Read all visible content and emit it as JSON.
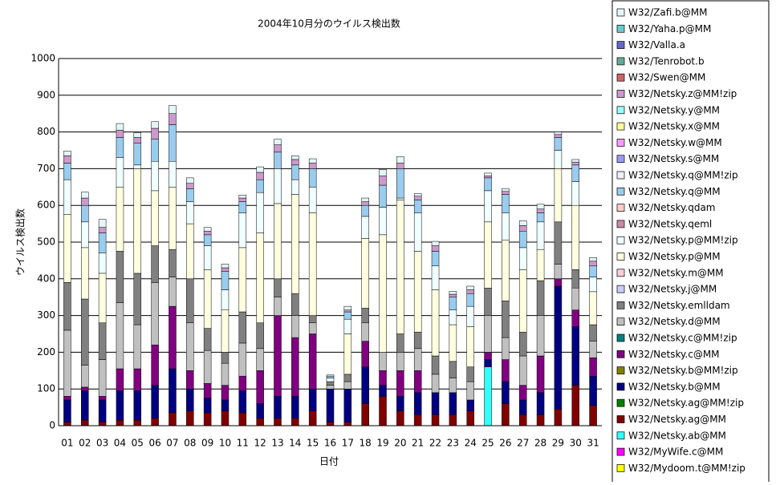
{
  "chart_data": {
    "type": "stacked_bar",
    "title": "2004年10月分のウイルス検出数",
    "x_label": "日付",
    "y_label": "ウイルス検出数",
    "categories": [
      "01",
      "02",
      "03",
      "04",
      "05",
      "06",
      "07",
      "08",
      "09",
      "10",
      "11",
      "12",
      "13",
      "14",
      "15",
      "16",
      "17",
      "18",
      "19",
      "20",
      "21",
      "22",
      "23",
      "24",
      "25",
      "26",
      "27",
      "28",
      "29",
      "30",
      "31"
    ],
    "ylim": [
      0,
      1000
    ],
    "yticks": [
      0,
      100,
      200,
      300,
      400,
      500,
      600,
      700,
      800,
      900,
      1000
    ],
    "grid": true,
    "series": [
      {
        "name": "W32/Zafi.b@MM",
        "color": "#e4f6f6",
        "values": [
          13,
          16,
          22,
          18,
          13,
          18,
          22,
          15,
          10,
          10,
          8,
          15,
          15,
          10,
          12,
          3,
          10,
          10,
          18,
          18,
          7,
          12,
          8,
          10,
          8,
          8,
          13,
          13,
          7,
          7,
          10
        ]
      },
      {
        "name": "W32/Yaha.p@MM",
        "color": "#66cccc",
        "values": [
          0,
          0,
          0,
          0,
          0,
          0,
          0,
          0,
          0,
          0,
          0,
          0,
          0,
          0,
          0,
          0,
          0,
          0,
          0,
          0,
          0,
          0,
          0,
          0,
          0,
          0,
          0,
          0,
          0,
          0,
          0
        ]
      },
      {
        "name": "W32/Valla.a",
        "color": "#6666cc",
        "values": [
          0,
          0,
          0,
          0,
          0,
          0,
          0,
          0,
          0,
          0,
          0,
          0,
          0,
          0,
          0,
          0,
          0,
          0,
          0,
          0,
          0,
          0,
          0,
          0,
          0,
          0,
          0,
          0,
          0,
          0,
          0
        ]
      },
      {
        "name": "W32/Tenrobot.b",
        "color": "#66aa99",
        "values": [
          0,
          0,
          0,
          0,
          0,
          0,
          0,
          0,
          0,
          0,
          0,
          0,
          0,
          0,
          0,
          0,
          0,
          0,
          0,
          0,
          0,
          0,
          0,
          0,
          0,
          0,
          0,
          0,
          0,
          0,
          0
        ]
      },
      {
        "name": "W32/Swen@MM",
        "color": "#cc6666",
        "values": [
          0,
          0,
          0,
          0,
          0,
          0,
          0,
          0,
          0,
          0,
          0,
          0,
          0,
          0,
          0,
          0,
          0,
          0,
          0,
          0,
          0,
          0,
          0,
          0,
          0,
          0,
          0,
          0,
          0,
          0,
          0
        ]
      },
      {
        "name": "W32/Netsky.z@MM!zip",
        "color": "#cc99cc",
        "values": [
          20,
          20,
          15,
          20,
          15,
          30,
          30,
          15,
          10,
          10,
          10,
          20,
          20,
          15,
          15,
          0,
          5,
          10,
          25,
          15,
          10,
          15,
          8,
          10,
          5,
          8,
          15,
          10,
          8,
          8,
          13
        ]
      },
      {
        "name": "W32/Netsky.y@MM",
        "color": "#99ffff",
        "values": [
          0,
          0,
          0,
          0,
          0,
          0,
          0,
          0,
          0,
          0,
          0,
          0,
          0,
          0,
          0,
          0,
          0,
          0,
          0,
          0,
          0,
          0,
          0,
          0,
          0,
          0,
          0,
          0,
          0,
          0,
          0
        ]
      },
      {
        "name": "W32/Netsky.x@MM",
        "color": "#ffff99",
        "values": [
          0,
          0,
          0,
          0,
          0,
          0,
          0,
          0,
          0,
          0,
          0,
          0,
          0,
          0,
          0,
          0,
          0,
          0,
          0,
          0,
          0,
          0,
          0,
          0,
          0,
          0,
          0,
          0,
          0,
          0,
          0
        ]
      },
      {
        "name": "W32/Netsky.w@MM",
        "color": "#ff99ff",
        "values": [
          0,
          0,
          0,
          0,
          0,
          0,
          0,
          0,
          0,
          0,
          0,
          0,
          0,
          0,
          0,
          0,
          0,
          0,
          0,
          0,
          0,
          0,
          0,
          0,
          0,
          0,
          0,
          0,
          0,
          0,
          0
        ]
      },
      {
        "name": "W32/Netsky.s@MM",
        "color": "#9999ff",
        "values": [
          0,
          0,
          0,
          0,
          0,
          0,
          0,
          0,
          0,
          0,
          0,
          0,
          0,
          0,
          0,
          0,
          0,
          0,
          0,
          0,
          0,
          0,
          0,
          0,
          0,
          0,
          0,
          0,
          0,
          0,
          0
        ]
      },
      {
        "name": "W32/Netsky.q@MM!zip",
        "color": "#eeeeff",
        "values": [
          0,
          0,
          0,
          0,
          0,
          0,
          0,
          0,
          0,
          0,
          0,
          0,
          0,
          0,
          0,
          0,
          0,
          0,
          0,
          0,
          0,
          0,
          0,
          0,
          0,
          0,
          0,
          0,
          0,
          0,
          0
        ]
      },
      {
        "name": "W32/Netsky.q@MM",
        "color": "#99ccee",
        "values": [
          45,
          45,
          55,
          55,
          60,
          60,
          100,
          35,
          30,
          50,
          30,
          35,
          45,
          40,
          50,
          5,
          20,
          30,
          60,
          80,
          35,
          40,
          35,
          35,
          35,
          50,
          45,
          25,
          35,
          45,
          30
        ]
      },
      {
        "name": "W32/Netsky.qdam",
        "color": "#ffcccc",
        "values": [
          0,
          0,
          0,
          0,
          0,
          0,
          0,
          0,
          0,
          0,
          0,
          0,
          0,
          0,
          0,
          0,
          0,
          0,
          0,
          0,
          0,
          0,
          0,
          0,
          0,
          0,
          0,
          0,
          0,
          0,
          0
        ]
      },
      {
        "name": "W32/Netsky.qeml",
        "color": "#cc88aa",
        "values": [
          0,
          0,
          0,
          0,
          0,
          0,
          0,
          0,
          0,
          0,
          0,
          0,
          0,
          0,
          0,
          0,
          0,
          0,
          0,
          0,
          0,
          0,
          0,
          0,
          0,
          0,
          0,
          0,
          0,
          0,
          0
        ]
      },
      {
        "name": "W32/Netsky.p@MM!zip",
        "color": "#f0ffff",
        "values": [
          95,
          70,
          55,
          80,
          10,
          80,
          70,
          60,
          65,
          55,
          95,
          110,
          95,
          40,
          70,
          10,
          40,
          60,
          75,
          5,
          105,
          65,
          40,
          55,
          85,
          75,
          60,
          75,
          50,
          65,
          40
        ]
      },
      {
        "name": "W32/Netsky.p@MM",
        "color": "#ffffe0",
        "values": [
          185,
          140,
          135,
          175,
          285,
          150,
          170,
          150,
          160,
          115,
          175,
          245,
          205,
          270,
          280,
          0,
          110,
          190,
          320,
          365,
          220,
          180,
          100,
          110,
          180,
          165,
          170,
          85,
          145,
          175,
          90
        ]
      },
      {
        "name": "W32/Netsky.m@MM",
        "color": "#ffccdd",
        "values": [
          0,
          0,
          0,
          0,
          0,
          0,
          0,
          0,
          0,
          0,
          0,
          0,
          0,
          0,
          0,
          0,
          0,
          0,
          0,
          0,
          0,
          0,
          0,
          0,
          0,
          0,
          0,
          0,
          0,
          0,
          0
        ]
      },
      {
        "name": "W32/Netsky.j@MM",
        "color": "#ccccff",
        "values": [
          0,
          0,
          0,
          0,
          0,
          0,
          0,
          0,
          0,
          0,
          0,
          0,
          0,
          0,
          0,
          0,
          0,
          0,
          0,
          0,
          0,
          0,
          0,
          0,
          0,
          0,
          0,
          0,
          0,
          0,
          0
        ]
      },
      {
        "name": "W32/Netsky.emlldam",
        "color": "#808080",
        "values": [
          130,
          180,
          100,
          140,
          140,
          100,
          75,
          120,
          60,
          30,
          85,
          70,
          50,
          60,
          20,
          10,
          20,
          40,
          0,
          50,
          45,
          50,
          45,
          40,
          75,
          100,
          65,
          95,
          115,
          50,
          45
        ]
      },
      {
        "name": "W32/Netsky.d@MM",
        "color": "#c0c0c0",
        "values": [
          180,
          60,
          100,
          180,
          120,
          170,
          80,
          130,
          90,
          60,
          90,
          60,
          50,
          60,
          30,
          10,
          20,
          50,
          50,
          50,
          60,
          50,
          40,
          50,
          100,
          60,
          80,
          110,
          40,
          60,
          45
        ]
      },
      {
        "name": "W32/Netsky.c@MM!zip",
        "color": "#008080",
        "values": [
          0,
          0,
          0,
          0,
          0,
          0,
          0,
          0,
          0,
          0,
          0,
          0,
          0,
          0,
          0,
          0,
          0,
          0,
          0,
          0,
          0,
          0,
          0,
          0,
          0,
          0,
          0,
          0,
          0,
          0,
          0
        ]
      },
      {
        "name": "W32/Netsky.c@MM",
        "color": "#800080",
        "values": [
          10,
          10,
          10,
          60,
          60,
          110,
          170,
          50,
          40,
          40,
          40,
          90,
          220,
          160,
          150,
          0,
          0,
          70,
          40,
          70,
          60,
          0,
          0,
          0,
          20,
          60,
          40,
          100,
          20,
          45,
          50
        ]
      },
      {
        "name": "W32/Netsky.b@MM!zip",
        "color": "#808000",
        "values": [
          0,
          0,
          0,
          0,
          0,
          0,
          0,
          0,
          0,
          0,
          0,
          0,
          0,
          0,
          0,
          0,
          0,
          0,
          0,
          0,
          0,
          0,
          0,
          0,
          0,
          0,
          0,
          0,
          0,
          0,
          0
        ]
      },
      {
        "name": "W32/Netsky.b@MM",
        "color": "#000080",
        "values": [
          60,
          80,
          60,
          80,
          80,
          90,
          120,
          60,
          40,
          30,
          60,
          40,
          60,
          60,
          60,
          90,
          90,
          100,
          30,
          40,
          60,
          60,
          60,
          30,
          20,
          60,
          40,
          60,
          335,
          160,
          80
        ]
      },
      {
        "name": "W32/Netsky.ag@MM!zip",
        "color": "#008000",
        "values": [
          0,
          0,
          0,
          0,
          0,
          0,
          0,
          0,
          0,
          0,
          0,
          0,
          0,
          0,
          0,
          0,
          0,
          0,
          0,
          0,
          0,
          0,
          0,
          0,
          0,
          0,
          0,
          0,
          0,
          0,
          0
        ]
      },
      {
        "name": "W32/Netsky.ag@MM",
        "color": "#800000",
        "values": [
          10,
          15,
          10,
          15,
          15,
          20,
          35,
          40,
          35,
          40,
          35,
          20,
          20,
          20,
          40,
          10,
          10,
          60,
          80,
          40,
          30,
          30,
          30,
          40,
          0,
          60,
          30,
          30,
          45,
          110,
          55
        ]
      },
      {
        "name": "W32/Netsky.ab@MM",
        "color": "#33ffff",
        "values": [
          0,
          0,
          0,
          0,
          0,
          0,
          0,
          0,
          0,
          0,
          0,
          0,
          0,
          0,
          0,
          0,
          0,
          0,
          0,
          0,
          0,
          0,
          0,
          0,
          160,
          0,
          0,
          0,
          0,
          0,
          0
        ]
      },
      {
        "name": "W32/MyWife.c@MM",
        "color": "#ff00ff",
        "values": [
          0,
          0,
          0,
          0,
          0,
          0,
          0,
          0,
          0,
          0,
          0,
          0,
          0,
          0,
          0,
          0,
          0,
          0,
          0,
          0,
          0,
          0,
          0,
          0,
          0,
          0,
          0,
          0,
          0,
          0,
          0
        ]
      },
      {
        "name": "W32/Mydoom.t@MM!zip",
        "color": "#ffff00",
        "values": [
          0,
          0,
          0,
          0,
          0,
          0,
          0,
          0,
          0,
          0,
          0,
          0,
          0,
          0,
          0,
          0,
          0,
          0,
          0,
          0,
          0,
          0,
          0,
          0,
          0,
          0,
          0,
          0,
          0,
          0,
          0
        ]
      }
    ]
  }
}
